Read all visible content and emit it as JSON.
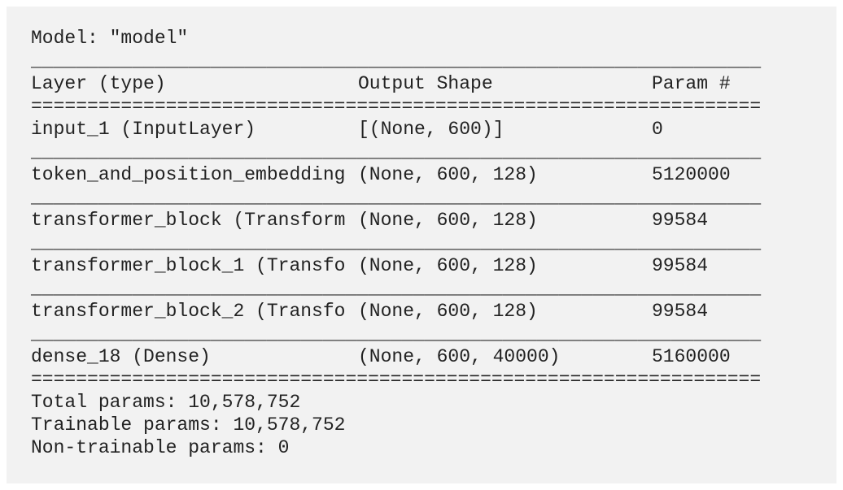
{
  "header": {
    "title": "Model: \"model\""
  },
  "rule": "_________________________________________________________________",
  "double_rule": "=================================================================",
  "table": {
    "columns": [
      "Layer (type)",
      "Output Shape",
      "Param #"
    ],
    "rows": [
      [
        "input_1 (InputLayer)",
        "[(None, 600)]",
        "0"
      ],
      [
        "token_and_position_embedding",
        "(None, 600, 128)",
        "5120000"
      ],
      [
        "transformer_block (Transform",
        "(None, 600, 128)",
        "99584"
      ],
      [
        "transformer_block_1 (Transfo",
        "(None, 600, 128)",
        "99584"
      ],
      [
        "transformer_block_2 (Transfo",
        "(None, 600, 128)",
        "99584"
      ],
      [
        "dense_18 (Dense)",
        "(None, 600, 40000)",
        "5160000"
      ]
    ]
  },
  "footer": [
    "Total params: 10,578,752",
    "Trainable params: 10,578,752",
    "Non-trainable params: 0"
  ]
}
